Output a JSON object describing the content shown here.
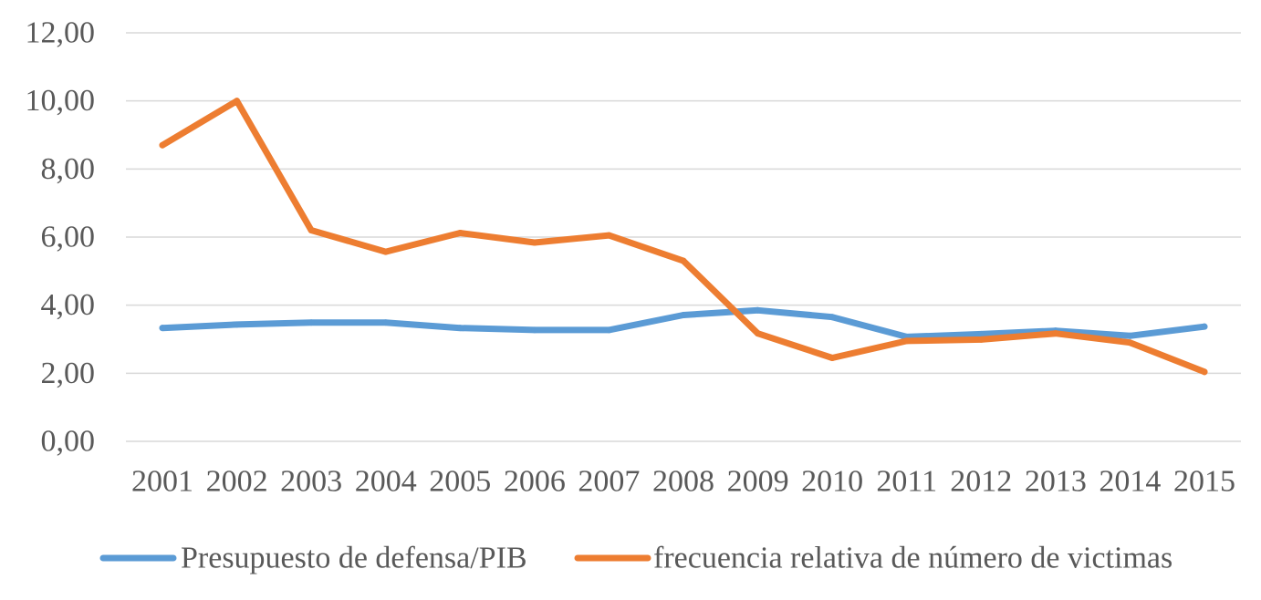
{
  "chart_data": {
    "type": "line",
    "title": "",
    "xlabel": "",
    "ylabel": "",
    "x": [
      "2001",
      "2002",
      "2003",
      "2004",
      "2005",
      "2006",
      "2007",
      "2008",
      "2009",
      "2010",
      "2011",
      "2012",
      "2013",
      "2014",
      "2015"
    ],
    "ylim": [
      0,
      12
    ],
    "y_ticks": [
      0,
      2,
      4,
      6,
      8,
      10,
      12
    ],
    "y_tick_labels": [
      "0,00",
      "2,00",
      "4,00",
      "6,00",
      "8,00",
      "10,00",
      "12,00"
    ],
    "grid": true,
    "legend_position": "bottom",
    "series": [
      {
        "name": "Presupuesto de defensa/PIB",
        "color": "#5b9bd5",
        "values": [
          3.33,
          3.43,
          3.49,
          3.49,
          3.33,
          3.27,
          3.27,
          3.71,
          3.85,
          3.65,
          3.07,
          3.15,
          3.25,
          3.1,
          3.37
        ]
      },
      {
        "name": "frecuencia relativa de número de victimas",
        "color": "#ed7d31",
        "values": [
          8.7,
          10.0,
          6.2,
          5.57,
          6.12,
          5.84,
          6.05,
          5.3,
          3.17,
          2.45,
          2.95,
          2.99,
          3.17,
          2.9,
          2.04
        ]
      }
    ]
  }
}
